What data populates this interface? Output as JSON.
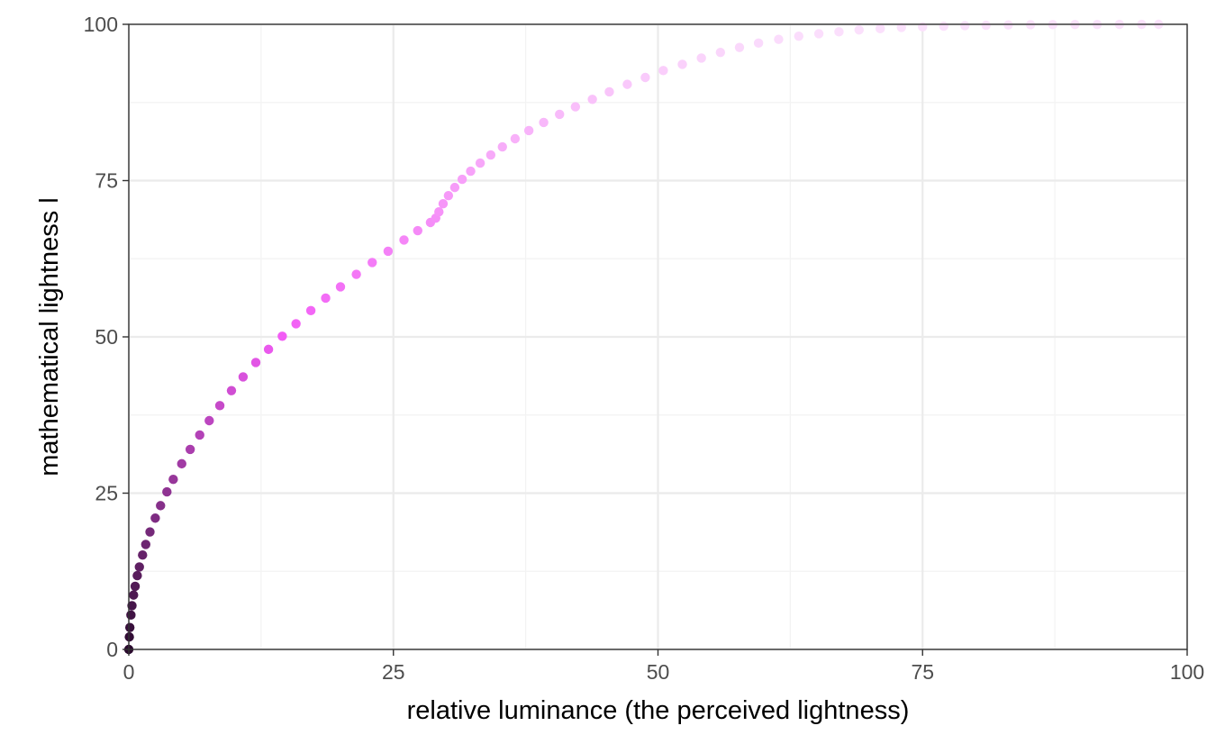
{
  "chart_data": {
    "type": "scatter",
    "title": "",
    "xlabel": "relative luminance (the perceived lightness)",
    "ylabel": "mathematical lightness l",
    "xlim": [
      0,
      100
    ],
    "ylim": [
      0,
      100
    ],
    "x_ticks": [
      0,
      25,
      50,
      75,
      100
    ],
    "y_ticks": [
      0,
      25,
      50,
      75,
      100
    ],
    "x_tick_labels": [
      "0",
      "25",
      "50",
      "75",
      "100"
    ],
    "y_tick_labels": [
      "0",
      "25",
      "50",
      "75",
      "100"
    ],
    "grid": true,
    "legend": "none",
    "color_low": "#2a0a2e",
    "color_mid": "#f25cf5",
    "color_high": "#fbe2fc",
    "series": [
      {
        "x": [
          0.0,
          0.05,
          0.1,
          0.2,
          0.3,
          0.45,
          0.6,
          0.8,
          1.0,
          1.3,
          1.6,
          2.0,
          2.5,
          3.0,
          3.6,
          4.2,
          5.0,
          5.8,
          6.7,
          7.6,
          8.6,
          9.7,
          10.8,
          12.0,
          13.2,
          14.5,
          15.8,
          17.2,
          18.6,
          20.0,
          21.5,
          23.0,
          24.5,
          26.0,
          27.3,
          28.5,
          29.0,
          29.3,
          29.7,
          30.2,
          30.8,
          31.5,
          32.3,
          33.2,
          34.2,
          35.3,
          36.5,
          37.8,
          39.2,
          40.7,
          42.2,
          43.8,
          45.4,
          47.1,
          48.8,
          50.5,
          52.3,
          54.1,
          55.9,
          57.7,
          59.5,
          61.4,
          63.3,
          65.2,
          67.1,
          69.0,
          71.0,
          73.0,
          75.0,
          77.0,
          79.0,
          81.0,
          83.1,
          85.2,
          87.3,
          89.4,
          91.5,
          93.6,
          95.7,
          97.3
        ],
        "y": [
          0.0,
          2.0,
          3.5,
          5.5,
          7.0,
          8.7,
          10.1,
          11.8,
          13.2,
          15.1,
          16.8,
          18.8,
          21.0,
          23.0,
          25.2,
          27.2,
          29.7,
          32.0,
          34.3,
          36.6,
          39.0,
          41.4,
          43.6,
          45.9,
          48.0,
          50.1,
          52.1,
          54.2,
          56.2,
          58.0,
          60.0,
          61.9,
          63.7,
          65.5,
          67.0,
          68.3,
          69.0,
          70.0,
          71.3,
          72.6,
          73.9,
          75.2,
          76.5,
          77.8,
          79.1,
          80.4,
          81.7,
          83.0,
          84.3,
          85.6,
          86.8,
          88.0,
          89.2,
          90.4,
          91.5,
          92.6,
          93.6,
          94.6,
          95.5,
          96.3,
          97.0,
          97.6,
          98.1,
          98.5,
          98.8,
          99.1,
          99.3,
          99.5,
          99.6,
          99.7,
          99.8,
          99.85,
          99.9,
          99.93,
          99.95,
          99.97,
          99.98,
          99.99,
          99.995,
          100.0
        ]
      }
    ]
  }
}
